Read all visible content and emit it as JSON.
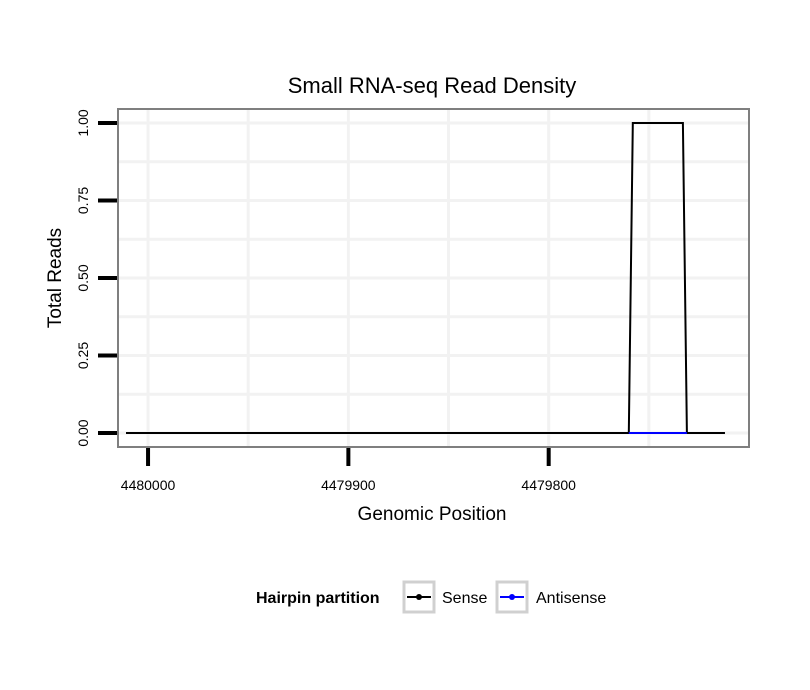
{
  "chart_data": {
    "type": "line",
    "title": "Small RNA-seq Read Density",
    "xlabel": "Genomic Position",
    "ylabel": "Total Reads",
    "x_reversed": true,
    "xlim": [
      4480015,
      4479700
    ],
    "ylim": [
      -0.045,
      1.045
    ],
    "x_ticks": [
      4480000,
      4479900,
      4479800
    ],
    "x_tick_labels": [
      "4480000",
      "4479900",
      "4479800"
    ],
    "y_ticks": [
      0,
      0.25,
      0.5,
      0.75,
      1.0
    ],
    "y_tick_labels": [
      "0.00",
      "0.25",
      "0.50",
      "0.75",
      "1.00"
    ],
    "grid": true,
    "legend": {
      "title": "Hairpin partition",
      "position": "bottom",
      "entries": [
        "Sense",
        "Antisense"
      ]
    },
    "series": [
      {
        "name": "Sense",
        "color": "#000000",
        "x": [
          4480011,
          4479760,
          4479758,
          4479733,
          4479731,
          4479712
        ],
        "y": [
          0,
          0,
          1,
          1,
          0,
          0
        ]
      },
      {
        "name": "Antisense",
        "color": "#0000ff",
        "x": [
          4479760,
          4479731
        ],
        "y": [
          0,
          0
        ]
      }
    ]
  }
}
